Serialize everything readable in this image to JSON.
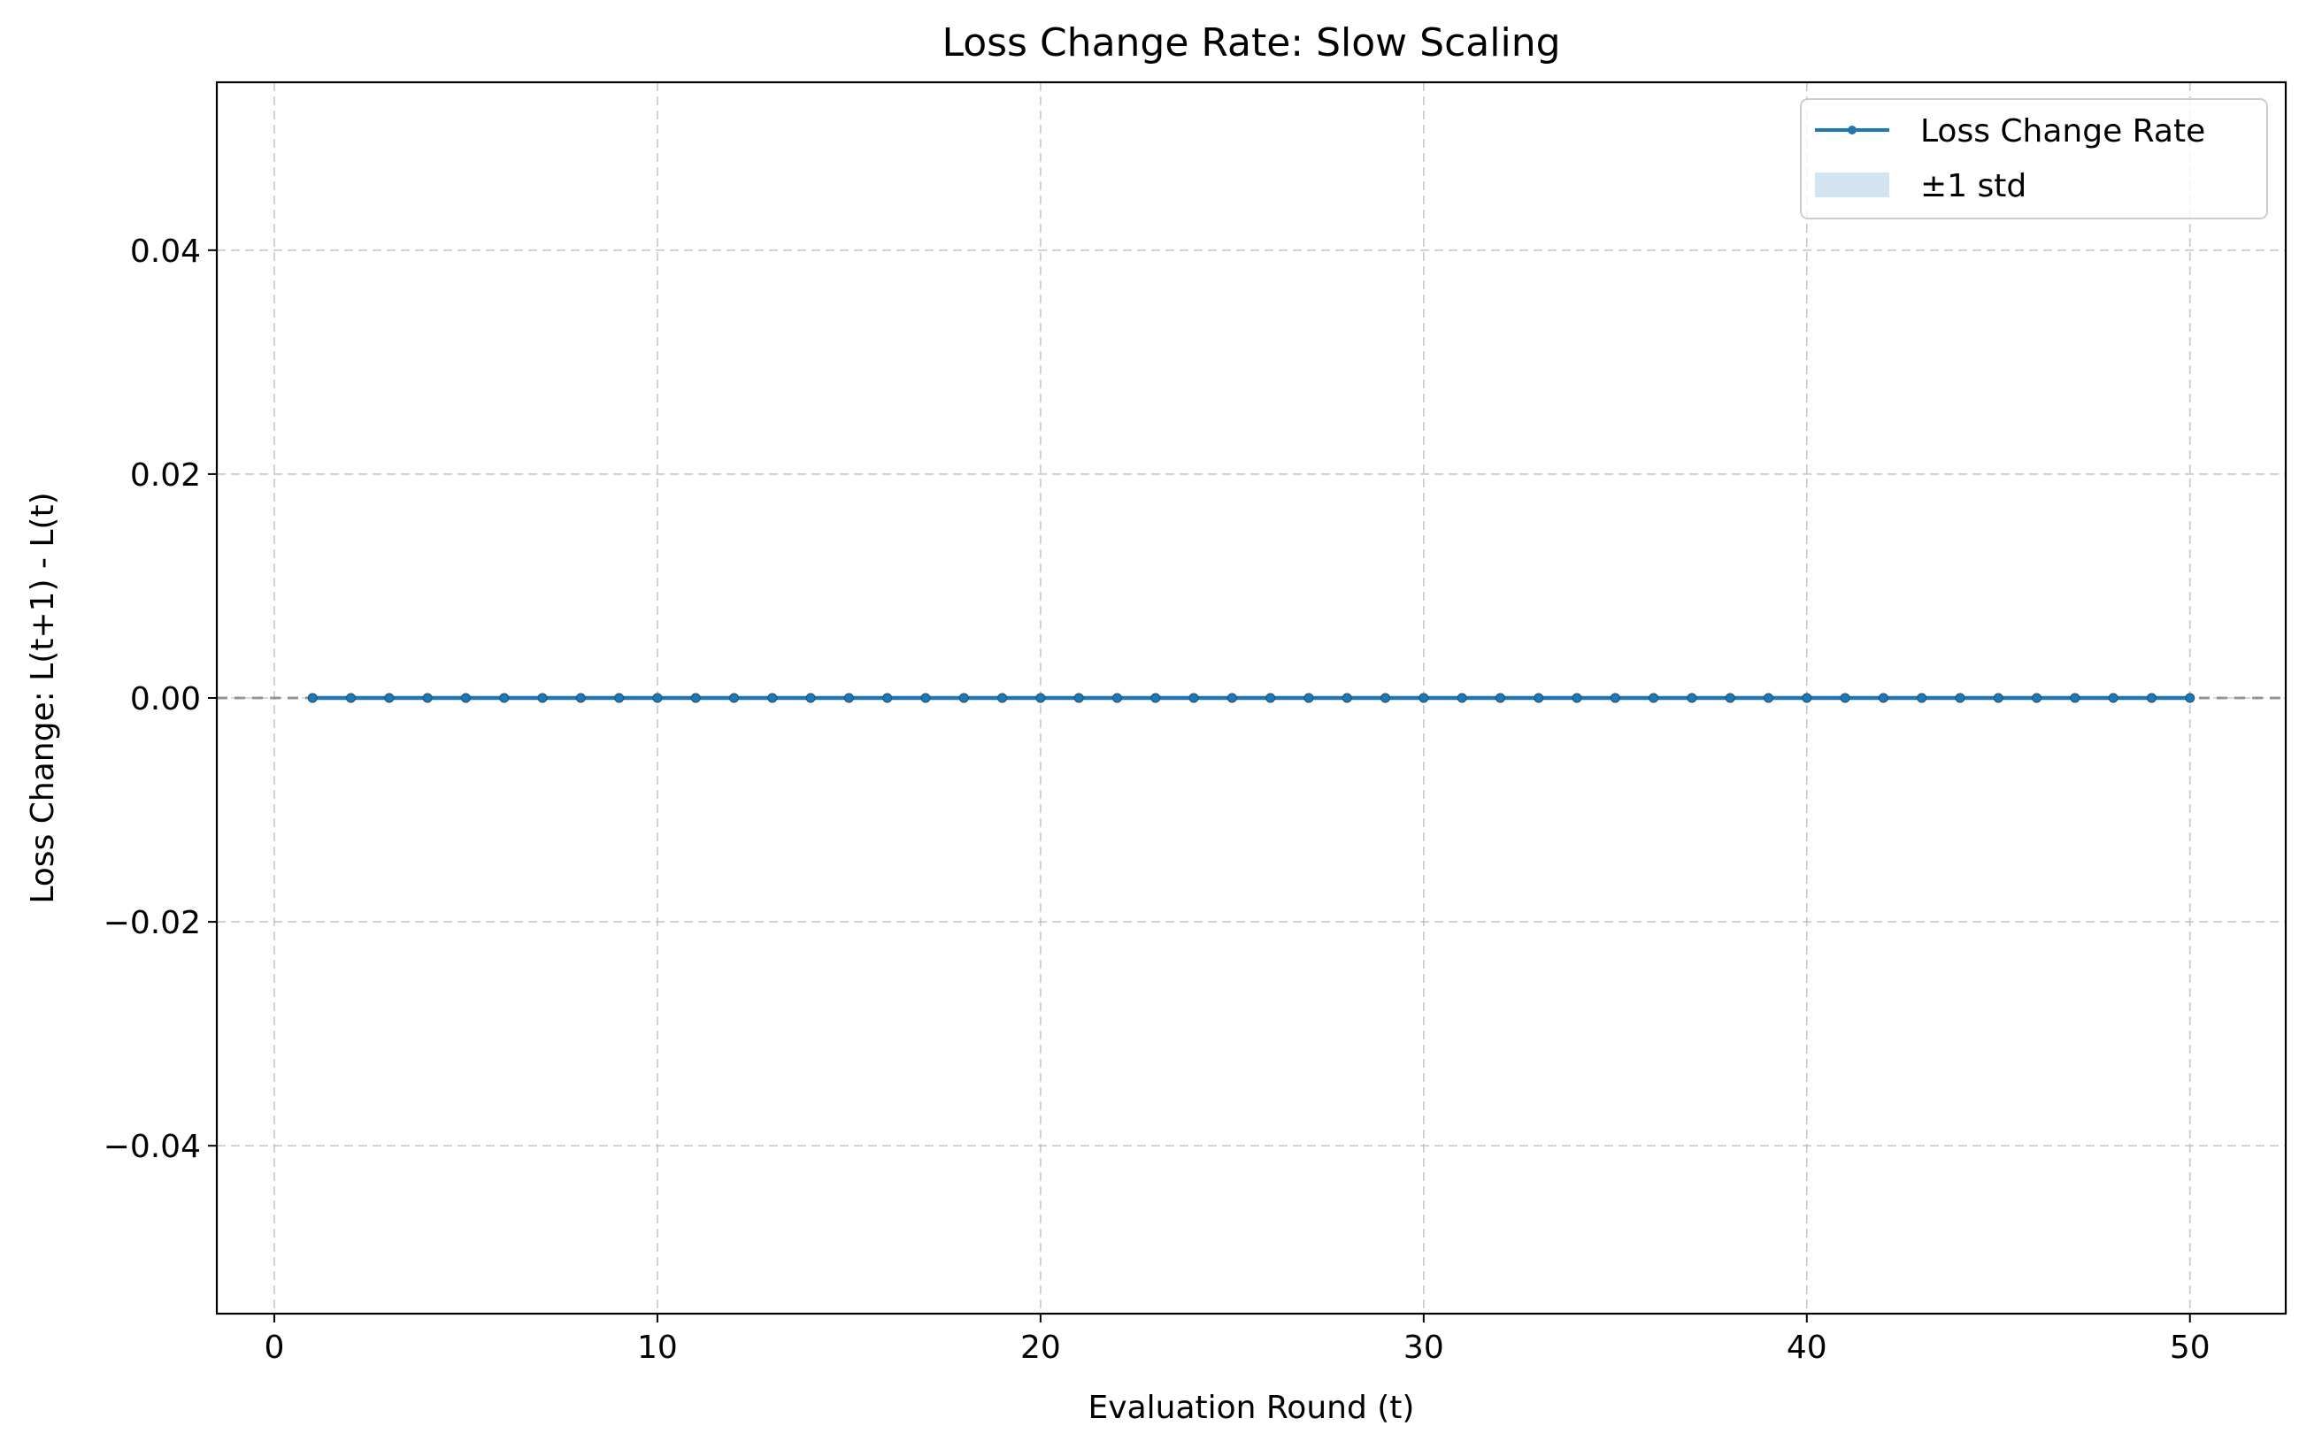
{
  "chart_data": {
    "type": "line",
    "title": "Loss Change Rate: Slow Scaling",
    "xlabel": "Evaluation Round (t)",
    "ylabel": "Loss Change: L(t+1) - L(t)",
    "xlim": [
      -1.5,
      52.5
    ],
    "ylim": [
      -0.055,
      0.055
    ],
    "x_ticks": [
      0,
      10,
      20,
      30,
      40,
      50
    ],
    "x_tick_labels": [
      "0",
      "10",
      "20",
      "30",
      "40",
      "50"
    ],
    "y_ticks": [
      -0.04,
      -0.02,
      0.0,
      0.02,
      0.04
    ],
    "y_tick_labels": [
      "−0.04",
      "−0.02",
      "0.00",
      "0.02",
      "0.04"
    ],
    "grid": true,
    "grid_style": "dashed",
    "legend_position": "upper right",
    "reference_line": {
      "y": 0,
      "style": "dashed",
      "color": "#808080"
    },
    "legend": [
      {
        "label": "Loss Change Rate",
        "kind": "line-marker",
        "color": "#1f77b4"
      },
      {
        "label": "±1 std",
        "kind": "band",
        "color": "#1f77b4"
      }
    ],
    "series": [
      {
        "name": "Loss Change Rate",
        "color": "#1f77b4",
        "x": [
          1,
          2,
          3,
          4,
          5,
          6,
          7,
          8,
          9,
          10,
          11,
          12,
          13,
          14,
          15,
          16,
          17,
          18,
          19,
          20,
          21,
          22,
          23,
          24,
          25,
          26,
          27,
          28,
          29,
          30,
          31,
          32,
          33,
          34,
          35,
          36,
          37,
          38,
          39,
          40,
          41,
          42,
          43,
          44,
          45,
          46,
          47,
          48,
          49,
          50
        ],
        "values": [
          0,
          0,
          0,
          0,
          0,
          0,
          0,
          0,
          0,
          0,
          0,
          0,
          0,
          0,
          0,
          0,
          0,
          0,
          0,
          0,
          0,
          0,
          0,
          0,
          0,
          0,
          0,
          0,
          0,
          0,
          0,
          0,
          0,
          0,
          0,
          0,
          0,
          0,
          0,
          0,
          0,
          0,
          0,
          0,
          0,
          0,
          0,
          0,
          0,
          0
        ],
        "std": [
          0,
          0,
          0,
          0,
          0,
          0,
          0,
          0,
          0,
          0,
          0,
          0,
          0,
          0,
          0,
          0,
          0,
          0,
          0,
          0,
          0,
          0,
          0,
          0,
          0,
          0,
          0,
          0,
          0,
          0,
          0,
          0,
          0,
          0,
          0,
          0,
          0,
          0,
          0,
          0,
          0,
          0,
          0,
          0,
          0,
          0,
          0,
          0,
          0,
          0
        ]
      }
    ]
  }
}
